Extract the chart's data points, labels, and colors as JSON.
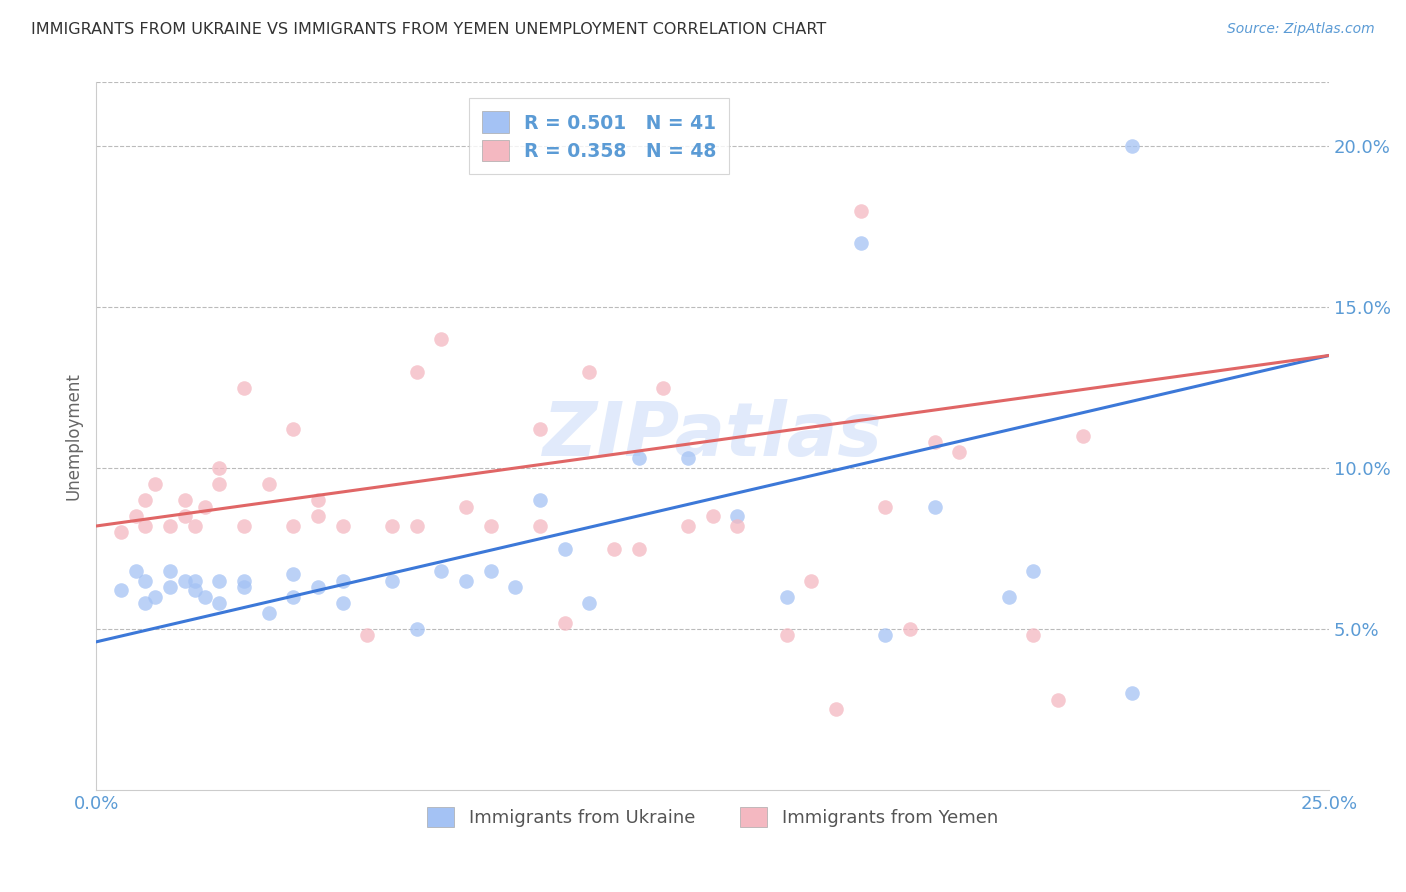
{
  "title": "IMMIGRANTS FROM UKRAINE VS IMMIGRANTS FROM YEMEN UNEMPLOYMENT CORRELATION CHART",
  "source": "Source: ZipAtlas.com",
  "ylabel": "Unemployment",
  "yticks": [
    0.05,
    0.1,
    0.15,
    0.2
  ],
  "ytick_labels": [
    "5.0%",
    "10.0%",
    "15.0%",
    "20.0%"
  ],
  "xlim": [
    0.0,
    0.25
  ],
  "ylim": [
    0.0,
    0.22
  ],
  "ukraine_color": "#a4c2f4",
  "yemen_color": "#f4b8c1",
  "ukraine_line_color": "#3c78d8",
  "yemen_line_color": "#e06666",
  "legend_R_ukraine": "R = 0.501",
  "legend_N_ukraine": "N = 41",
  "legend_R_yemen": "R = 0.358",
  "legend_N_yemen": "N = 48",
  "ukraine_scatter_x": [
    0.005,
    0.008,
    0.01,
    0.01,
    0.012,
    0.015,
    0.015,
    0.018,
    0.02,
    0.02,
    0.022,
    0.025,
    0.025,
    0.03,
    0.03,
    0.035,
    0.04,
    0.04,
    0.045,
    0.05,
    0.05,
    0.06,
    0.065,
    0.07,
    0.075,
    0.08,
    0.085,
    0.09,
    0.095,
    0.1,
    0.11,
    0.12,
    0.13,
    0.14,
    0.155,
    0.16,
    0.17,
    0.185,
    0.19,
    0.21,
    0.21
  ],
  "ukraine_scatter_y": [
    0.062,
    0.068,
    0.058,
    0.065,
    0.06,
    0.063,
    0.068,
    0.065,
    0.062,
    0.065,
    0.06,
    0.065,
    0.058,
    0.065,
    0.063,
    0.055,
    0.06,
    0.067,
    0.063,
    0.058,
    0.065,
    0.065,
    0.05,
    0.068,
    0.065,
    0.068,
    0.063,
    0.09,
    0.075,
    0.058,
    0.103,
    0.103,
    0.085,
    0.06,
    0.17,
    0.048,
    0.088,
    0.06,
    0.068,
    0.03,
    0.2
  ],
  "yemen_scatter_x": [
    0.005,
    0.008,
    0.01,
    0.01,
    0.012,
    0.015,
    0.018,
    0.018,
    0.02,
    0.022,
    0.025,
    0.025,
    0.03,
    0.03,
    0.035,
    0.04,
    0.04,
    0.045,
    0.045,
    0.05,
    0.055,
    0.06,
    0.065,
    0.065,
    0.07,
    0.075,
    0.08,
    0.09,
    0.09,
    0.095,
    0.1,
    0.105,
    0.11,
    0.115,
    0.12,
    0.125,
    0.13,
    0.14,
    0.145,
    0.15,
    0.155,
    0.16,
    0.165,
    0.17,
    0.175,
    0.19,
    0.195,
    0.2
  ],
  "yemen_scatter_y": [
    0.08,
    0.085,
    0.082,
    0.09,
    0.095,
    0.082,
    0.085,
    0.09,
    0.082,
    0.088,
    0.1,
    0.095,
    0.125,
    0.082,
    0.095,
    0.082,
    0.112,
    0.085,
    0.09,
    0.082,
    0.048,
    0.082,
    0.082,
    0.13,
    0.14,
    0.088,
    0.082,
    0.082,
    0.112,
    0.052,
    0.13,
    0.075,
    0.075,
    0.125,
    0.082,
    0.085,
    0.082,
    0.048,
    0.065,
    0.025,
    0.18,
    0.088,
    0.05,
    0.108,
    0.105,
    0.048,
    0.028,
    0.11
  ],
  "ukraine_trend_x": [
    0.0,
    0.25
  ],
  "ukraine_trend_y": [
    0.046,
    0.135
  ],
  "yemen_trend_x": [
    0.0,
    0.25
  ],
  "yemen_trend_y": [
    0.082,
    0.135
  ],
  "watermark": "ZIPatlas",
  "title_fontsize": 11.5,
  "axis_label_color": "#5b9bd5",
  "tick_label_color": "#5b9bd5",
  "grid_color": "#bbbbbb",
  "legend_text_color": "#333333",
  "legend_value_color": "#5b9bd5"
}
